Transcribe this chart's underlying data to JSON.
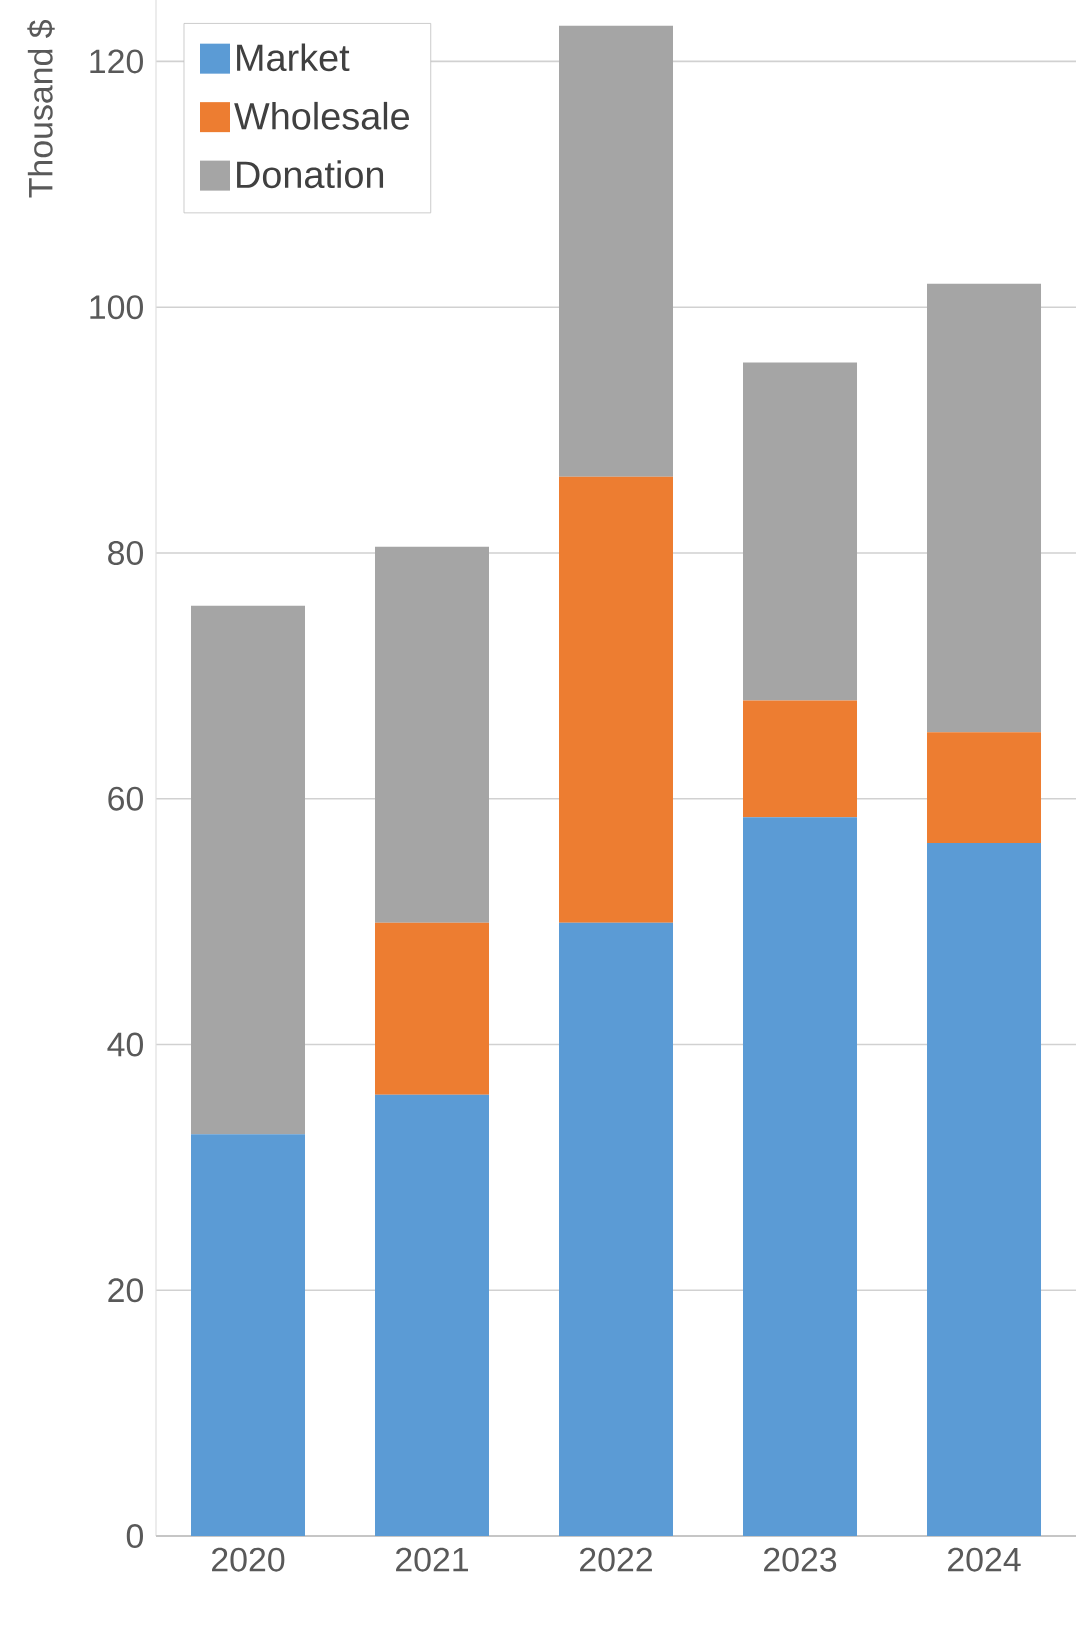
{
  "chart_data": {
    "type": "bar",
    "stacked": true,
    "ylabel": "Thousand $",
    "categories": [
      "2020",
      "2021",
      "2022",
      "2023",
      "2024"
    ],
    "series": [
      {
        "name": "Market",
        "color": "#5b9bd5",
        "values": [
          32.7,
          35.9,
          49.9,
          58.5,
          56.4
        ]
      },
      {
        "name": "Wholesale",
        "color": "#ed7d31",
        "values": [
          0,
          14,
          36.3,
          9.5,
          9
        ]
      },
      {
        "name": "Donation",
        "color": "#a5a5a5",
        "values": [
          43,
          30.6,
          36.7,
          27.5,
          36.5
        ]
      }
    ],
    "ylim": [
      0,
      125
    ],
    "yticks": [
      0,
      20,
      40,
      60,
      80,
      100,
      120
    ],
    "grid": "y",
    "legend": "top left"
  }
}
